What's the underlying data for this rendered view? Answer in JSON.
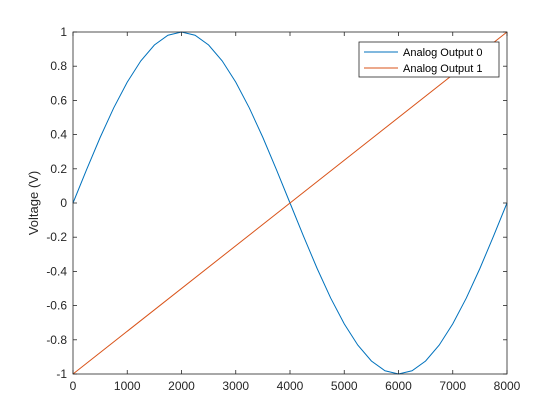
{
  "chart_data": {
    "type": "line",
    "title": "",
    "xlabel": "",
    "ylabel": "Voltage (V)",
    "xlim": [
      0,
      8000
    ],
    "ylim": [
      -1,
      1
    ],
    "xticks": [
      0,
      1000,
      2000,
      3000,
      4000,
      5000,
      6000,
      7000,
      8000
    ],
    "yticks": [
      -1,
      -0.8,
      -0.6,
      -0.4,
      -0.2,
      0,
      0.2,
      0.4,
      0.6,
      0.8,
      1
    ],
    "grid": false,
    "legend_position": "top-right",
    "series": [
      {
        "name": "Analog Output 0",
        "color": "#0072BD",
        "x": [
          0,
          250,
          500,
          750,
          1000,
          1250,
          1500,
          1750,
          2000,
          2250,
          2500,
          2750,
          3000,
          3250,
          3500,
          3750,
          4000,
          4250,
          4500,
          4750,
          5000,
          5250,
          5500,
          5750,
          6000,
          6250,
          6500,
          6750,
          7000,
          7250,
          7500,
          7750,
          8000
        ],
        "y": [
          0,
          0.195,
          0.383,
          0.556,
          0.707,
          0.831,
          0.924,
          0.981,
          1,
          0.981,
          0.924,
          0.831,
          0.707,
          0.556,
          0.383,
          0.195,
          0,
          -0.195,
          -0.383,
          -0.556,
          -0.707,
          -0.831,
          -0.924,
          -0.981,
          -1,
          -0.981,
          -0.924,
          -0.831,
          -0.707,
          -0.556,
          -0.383,
          -0.195,
          0
        ]
      },
      {
        "name": "Analog Output 1",
        "color": "#D95319",
        "x": [
          0,
          8000
        ],
        "y": [
          -1,
          1
        ]
      }
    ]
  }
}
